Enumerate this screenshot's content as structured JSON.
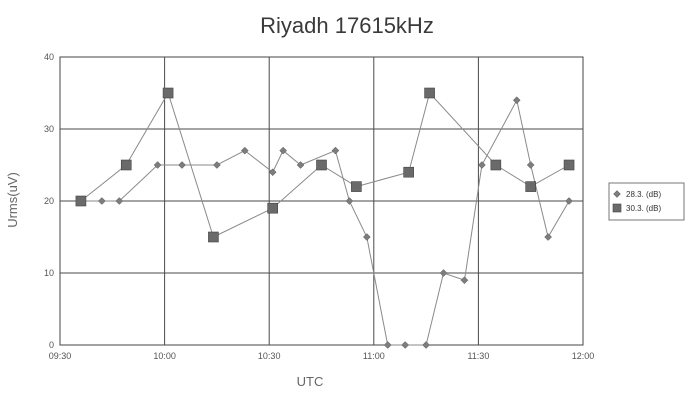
{
  "chart_data": {
    "type": "line",
    "title": "Riyadh 17615kHz",
    "xlabel": "UTC",
    "ylabel": "Urms(uV)",
    "x_ticks": [
      "09:30",
      "10:00",
      "10:30",
      "11:00",
      "11:30",
      "12:00"
    ],
    "y_ticks": [
      0,
      10,
      20,
      30,
      40
    ],
    "xlim": [
      "09:30",
      "12:00"
    ],
    "ylim": [
      0,
      40
    ],
    "grid": true,
    "legend_position": "right",
    "series": [
      {
        "name": "28.3. (dB)",
        "marker": "diamond",
        "color": "#7d7d7d",
        "points": [
          {
            "x": "09:36",
            "y": 20
          },
          {
            "x": "09:42",
            "y": 20
          },
          {
            "x": "09:47",
            "y": 20
          },
          {
            "x": "09:58",
            "y": 25
          },
          {
            "x": "10:05",
            "y": 25
          },
          {
            "x": "10:15",
            "y": 25
          },
          {
            "x": "10:23",
            "y": 27
          },
          {
            "x": "10:31",
            "y": 24
          },
          {
            "x": "10:34",
            "y": 27
          },
          {
            "x": "10:39",
            "y": 25
          },
          {
            "x": "10:49",
            "y": 27
          },
          {
            "x": "10:53",
            "y": 20
          },
          {
            "x": "10:58",
            "y": 15
          },
          {
            "x": "11:04",
            "y": 0
          },
          {
            "x": "11:09",
            "y": 0
          },
          {
            "x": "11:15",
            "y": 0
          },
          {
            "x": "11:20",
            "y": 10
          },
          {
            "x": "11:26",
            "y": 9
          },
          {
            "x": "11:31",
            "y": 25
          },
          {
            "x": "11:41",
            "y": 34
          },
          {
            "x": "11:45",
            "y": 25
          },
          {
            "x": "11:50",
            "y": 15
          },
          {
            "x": "11:56",
            "y": 20
          }
        ]
      },
      {
        "name": "30.3. (dB)",
        "marker": "square",
        "color": "#6a6a6a",
        "points": [
          {
            "x": "09:36",
            "y": 20
          },
          {
            "x": "09:49",
            "y": 25
          },
          {
            "x": "10:01",
            "y": 35
          },
          {
            "x": "10:14",
            "y": 15
          },
          {
            "x": "10:31",
            "y": 19
          },
          {
            "x": "10:45",
            "y": 25
          },
          {
            "x": "10:55",
            "y": 22
          },
          {
            "x": "11:10",
            "y": 24
          },
          {
            "x": "11:16",
            "y": 35
          },
          {
            "x": "11:35",
            "y": 25
          },
          {
            "x": "11:45",
            "y": 22
          },
          {
            "x": "11:56",
            "y": 25
          }
        ]
      }
    ]
  }
}
